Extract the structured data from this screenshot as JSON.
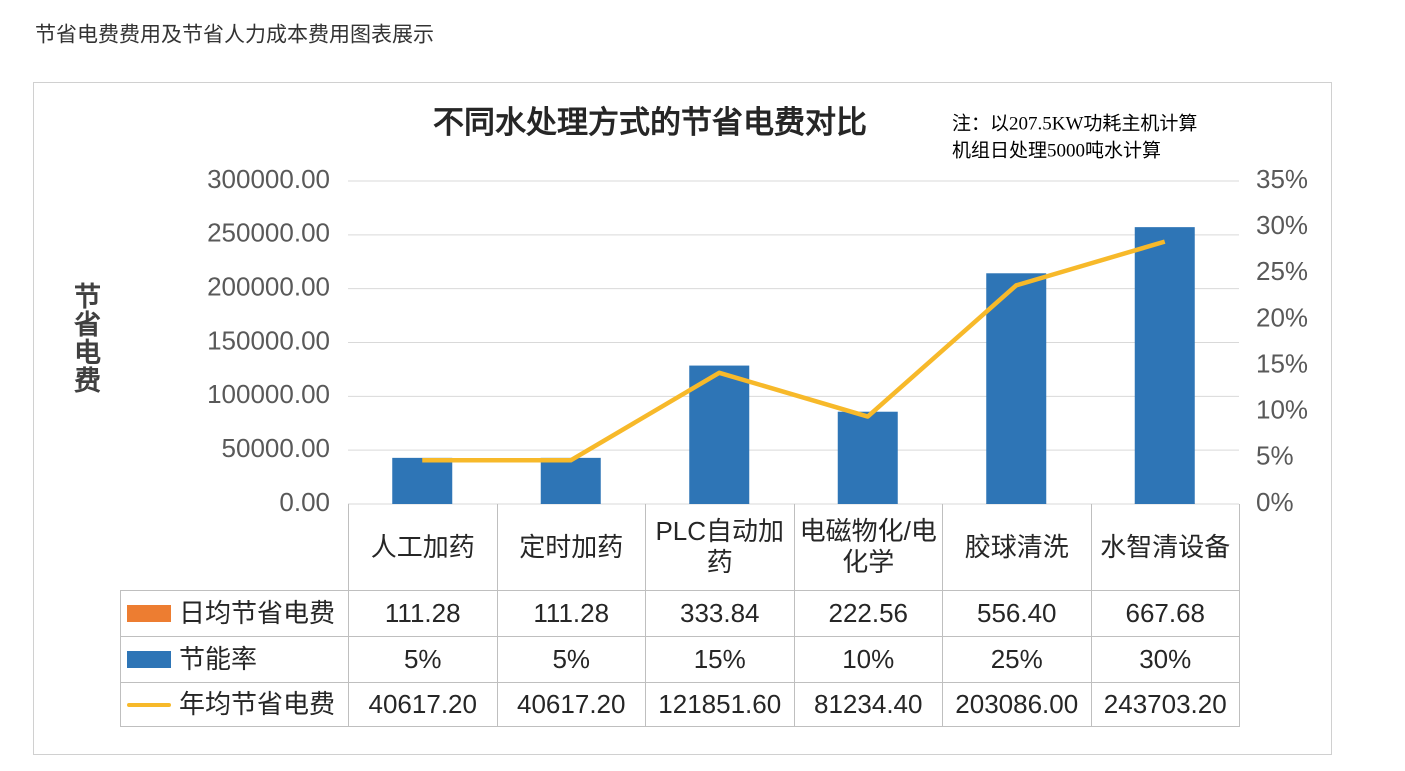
{
  "header": {
    "title": "节省电费费用及节省人力成本费用图表展示"
  },
  "chart_data": {
    "type": "bar",
    "title": "不同水处理方式的节省电费对比",
    "note": [
      "注：以207.5KW功耗主机计算",
      "机组日处理5000吨水计算"
    ],
    "y_label": "节省电费",
    "categories": [
      "人工加药",
      "定时加药",
      "PLC自动加药",
      "电磁物化/电化学",
      "胶球清洗",
      "水智清设备"
    ],
    "series": [
      {
        "name": "日均节省电费",
        "type": "bar",
        "color": "#ED7D31",
        "values": [
          111.28,
          111.28,
          333.84,
          222.56,
          556.4,
          667.68
        ],
        "value_labels": [
          "111.28",
          "111.28",
          "333.84",
          "222.56",
          "556.40",
          "667.68"
        ]
      },
      {
        "name": "节能率",
        "type": "bar",
        "axis": "y2",
        "color": "#2E75B6",
        "values": [
          5,
          5,
          15,
          10,
          25,
          30
        ],
        "value_labels": [
          "5%",
          "5%",
          "15%",
          "10%",
          "25%",
          "30%"
        ]
      },
      {
        "name": "年均节省电费",
        "type": "line",
        "color": "#F7B92A",
        "values": [
          40617.2,
          40617.2,
          121851.6,
          81234.4,
          203086,
          243703.2
        ],
        "value_labels": [
          "40617.20",
          "40617.20",
          "121851.60",
          "81234.40",
          "203086.00",
          "243703.20"
        ]
      }
    ],
    "ylim": [
      0,
      300000
    ],
    "yticks": [
      {
        "value": 0,
        "label": "0.00"
      },
      {
        "value": 50000,
        "label": "50000.00"
      },
      {
        "value": 100000,
        "label": "100000.00"
      },
      {
        "value": 150000,
        "label": "150000.00"
      },
      {
        "value": 200000,
        "label": "200000.00"
      },
      {
        "value": 250000,
        "label": "250000.00"
      },
      {
        "value": 300000,
        "label": "300000.00"
      }
    ],
    "y2lim": [
      0,
      35
    ],
    "y2ticks": [
      {
        "value": 0,
        "label": "0%"
      },
      {
        "value": 5,
        "label": "5%"
      },
      {
        "value": 10,
        "label": "10%"
      },
      {
        "value": 15,
        "label": "15%"
      },
      {
        "value": 20,
        "label": "20%"
      },
      {
        "value": 25,
        "label": "25%"
      },
      {
        "value": 30,
        "label": "30%"
      },
      {
        "value": 35,
        "label": "35%"
      }
    ],
    "grid": true
  }
}
